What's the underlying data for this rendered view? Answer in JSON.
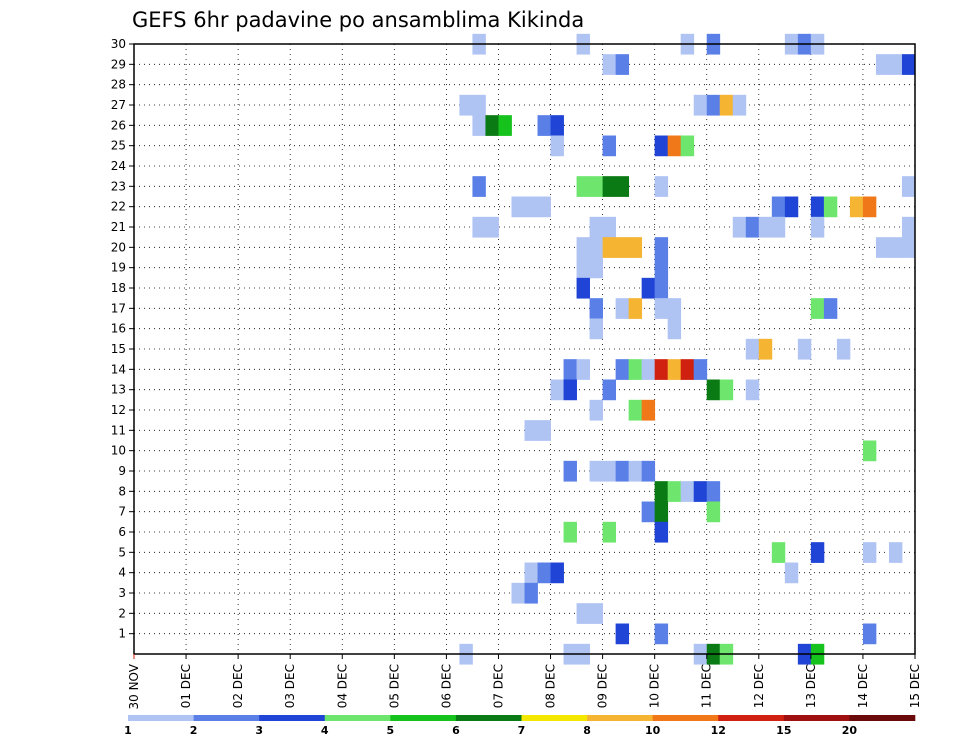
{
  "chart_data": {
    "type": "heatmap",
    "title": "GEFS 6hr padavine po ansamblima Kikinda",
    "x_ticks": [
      "30 NOV",
      "01 DEC",
      "02 DEC",
      "03 DEC",
      "04 DEC",
      "05 DEC",
      "06 DEC",
      "07 DEC",
      "08 DEC",
      "09 DEC",
      "10 DEC",
      "11 DEC",
      "12 DEC",
      "13 DEC",
      "14 DEC",
      "15 DEC"
    ],
    "y_ticks": [
      "1",
      "2",
      "3",
      "4",
      "5",
      "6",
      "7",
      "8",
      "9",
      "10",
      "11",
      "12",
      "13",
      "14",
      "15",
      "16",
      "17",
      "18",
      "19",
      "20",
      "21",
      "22",
      "23",
      "24",
      "25",
      "26",
      "27",
      "28",
      "29",
      "30"
    ],
    "xlim_days": [
      0,
      15
    ],
    "ylim": [
      0,
      30
    ],
    "grid": true,
    "colorbar": {
      "labels": [
        "1",
        "2",
        "3",
        "4",
        "5",
        "6",
        "7",
        "8",
        "10",
        "12",
        "15",
        "20"
      ],
      "colors": [
        "#b0c4f4",
        "#5a80e8",
        "#1f44d6",
        "#6ee66e",
        "#16c21c",
        "#0a7a14",
        "#f5e800",
        "#f5b432",
        "#f07818",
        "#d02010",
        "#a01010",
        "#6a0a0a"
      ]
    },
    "cells": [
      [
        6.5,
        30,
        1
      ],
      [
        8.5,
        30,
        1
      ],
      [
        10.5,
        30,
        1
      ],
      [
        11.0,
        30,
        2
      ],
      [
        12.5,
        30,
        1
      ],
      [
        12.75,
        30,
        2
      ],
      [
        13.0,
        30,
        1
      ],
      [
        9.0,
        29,
        1
      ],
      [
        9.25,
        29,
        2
      ],
      [
        14.25,
        29,
        1
      ],
      [
        14.5,
        29,
        1
      ],
      [
        14.75,
        29,
        3
      ],
      [
        6.25,
        27,
        1
      ],
      [
        6.5,
        27,
        1
      ],
      [
        10.75,
        27,
        1
      ],
      [
        11.0,
        27,
        2
      ],
      [
        11.25,
        27,
        8
      ],
      [
        11.5,
        27,
        1
      ],
      [
        6.5,
        26,
        1
      ],
      [
        6.75,
        26,
        6
      ],
      [
        7.0,
        26,
        5
      ],
      [
        7.75,
        26,
        2
      ],
      [
        8.0,
        26,
        3
      ],
      [
        8.0,
        25,
        1
      ],
      [
        9.0,
        25,
        2
      ],
      [
        10.0,
        25,
        3
      ],
      [
        10.25,
        25,
        9
      ],
      [
        10.5,
        25,
        4
      ],
      [
        6.5,
        23,
        2
      ],
      [
        8.5,
        23,
        4
      ],
      [
        8.75,
        23,
        4
      ],
      [
        9.0,
        23,
        6
      ],
      [
        9.25,
        23,
        6
      ],
      [
        10.0,
        23,
        1
      ],
      [
        14.75,
        23,
        1
      ],
      [
        7.25,
        22,
        1
      ],
      [
        7.5,
        22,
        1
      ],
      [
        7.75,
        22,
        1
      ],
      [
        12.25,
        22,
        2
      ],
      [
        12.5,
        22,
        3
      ],
      [
        13.0,
        22,
        3
      ],
      [
        13.25,
        22,
        4
      ],
      [
        13.75,
        22,
        8
      ],
      [
        14.0,
        22,
        9
      ],
      [
        6.5,
        21,
        1
      ],
      [
        6.75,
        21,
        1
      ],
      [
        8.75,
        21,
        1
      ],
      [
        9.0,
        21,
        1
      ],
      [
        11.5,
        21,
        1
      ],
      [
        11.75,
        21,
        2
      ],
      [
        12.0,
        21,
        1
      ],
      [
        12.25,
        21,
        1
      ],
      [
        13.0,
        21,
        1
      ],
      [
        14.75,
        21,
        1
      ],
      [
        8.5,
        20,
        1
      ],
      [
        8.75,
        20,
        1
      ],
      [
        9.0,
        20,
        8
      ],
      [
        9.25,
        20,
        8
      ],
      [
        9.5,
        20,
        8
      ],
      [
        10.0,
        20,
        2
      ],
      [
        14.25,
        20,
        1
      ],
      [
        14.5,
        20,
        1
      ],
      [
        14.75,
        20,
        1
      ],
      [
        8.5,
        19,
        1
      ],
      [
        8.75,
        19,
        1
      ],
      [
        10.0,
        19,
        2
      ],
      [
        8.5,
        18,
        3
      ],
      [
        9.75,
        18,
        3
      ],
      [
        10.0,
        18,
        2
      ],
      [
        8.75,
        17,
        2
      ],
      [
        9.25,
        17,
        1
      ],
      [
        9.5,
        17,
        8
      ],
      [
        10.0,
        17,
        1
      ],
      [
        10.25,
        17,
        1
      ],
      [
        13.0,
        17,
        4
      ],
      [
        13.25,
        17,
        2
      ],
      [
        8.75,
        16,
        1
      ],
      [
        10.25,
        16,
        1
      ],
      [
        11.75,
        15,
        1
      ],
      [
        12.0,
        15,
        8
      ],
      [
        12.75,
        15,
        1
      ],
      [
        13.5,
        15,
        1
      ],
      [
        8.25,
        14,
        2
      ],
      [
        8.5,
        14,
        1
      ],
      [
        9.25,
        14,
        2
      ],
      [
        9.5,
        14,
        4
      ],
      [
        9.75,
        14,
        1
      ],
      [
        10.0,
        14,
        10
      ],
      [
        10.25,
        14,
        8
      ],
      [
        10.5,
        14,
        10
      ],
      [
        10.75,
        14,
        2
      ],
      [
        8.0,
        13,
        1
      ],
      [
        8.25,
        13,
        3
      ],
      [
        9.0,
        13,
        2
      ],
      [
        11.0,
        13,
        6
      ],
      [
        11.25,
        13,
        4
      ],
      [
        11.75,
        13,
        1
      ],
      [
        8.75,
        12,
        1
      ],
      [
        9.5,
        12,
        4
      ],
      [
        9.75,
        12,
        9
      ],
      [
        7.5,
        11,
        1
      ],
      [
        7.75,
        11,
        1
      ],
      [
        14.0,
        10,
        4
      ],
      [
        8.25,
        9,
        2
      ],
      [
        8.75,
        9,
        1
      ],
      [
        9.0,
        9,
        1
      ],
      [
        9.25,
        9,
        2
      ],
      [
        9.5,
        9,
        1
      ],
      [
        9.75,
        9,
        2
      ],
      [
        10.0,
        8,
        6
      ],
      [
        10.25,
        8,
        4
      ],
      [
        10.5,
        8,
        1
      ],
      [
        10.75,
        8,
        3
      ],
      [
        11.0,
        8,
        2
      ],
      [
        9.75,
        7,
        2
      ],
      [
        10.0,
        7,
        6
      ],
      [
        11.0,
        7,
        4
      ],
      [
        8.25,
        6,
        4
      ],
      [
        9.0,
        6,
        4
      ],
      [
        10.0,
        6,
        3
      ],
      [
        12.25,
        5,
        4
      ],
      [
        13.0,
        5,
        3
      ],
      [
        14.0,
        5,
        1
      ],
      [
        14.5,
        5,
        1
      ],
      [
        7.5,
        4,
        1
      ],
      [
        7.75,
        4,
        2
      ],
      [
        8.0,
        4,
        3
      ],
      [
        12.5,
        4,
        1
      ],
      [
        7.25,
        3,
        1
      ],
      [
        7.5,
        3,
        2
      ],
      [
        8.5,
        2,
        1
      ],
      [
        8.75,
        2,
        1
      ],
      [
        9.25,
        1,
        3
      ],
      [
        10.0,
        1,
        2
      ],
      [
        14.0,
        1,
        2
      ],
      [
        6.25,
        0,
        1
      ],
      [
        8.25,
        0,
        1
      ],
      [
        8.5,
        0,
        1
      ],
      [
        10.75,
        0,
        1
      ],
      [
        11.0,
        0,
        6
      ],
      [
        11.25,
        0,
        4
      ],
      [
        12.75,
        0,
        3
      ],
      [
        13.0,
        0,
        5
      ]
    ]
  }
}
